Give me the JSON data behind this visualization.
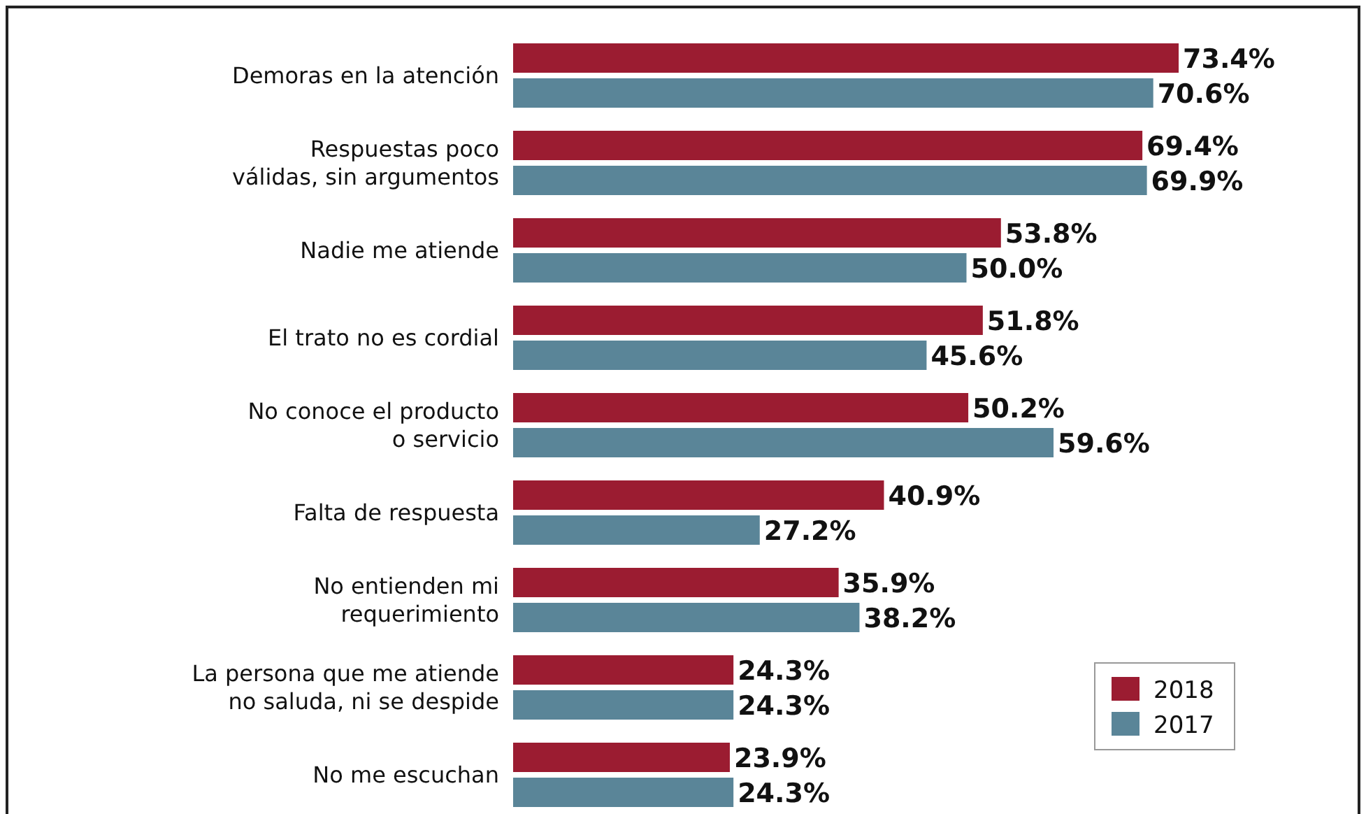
{
  "chart_data": {
    "type": "bar",
    "orientation": "horizontal",
    "legend": "bottom right",
    "categories": [
      "Demoras en la atención",
      "Respuestas poco\nválidas, sin argumentos",
      "Nadie me atiende",
      "El trato no es cordial",
      "No conoce el producto\no servicio",
      "Falta de respuesta",
      "No entienden mi\nrequerimiento",
      "La persona que me atiende\nno saluda, ni se despide",
      "No me escuchan"
    ],
    "series": [
      {
        "name": "2018",
        "color": "#9b1c31",
        "values": [
          73.4,
          69.4,
          53.8,
          51.8,
          50.2,
          40.9,
          35.9,
          24.3,
          23.9
        ],
        "value_labels": [
          "73.4%",
          "69.4%",
          "53.8%",
          "51.8%",
          "50.2%",
          "40.9%",
          "35.9%",
          "24.3%",
          "23.9%"
        ]
      },
      {
        "name": "2017",
        "color": "#5a8598",
        "values": [
          70.6,
          69.9,
          50.0,
          45.6,
          59.6,
          27.2,
          38.2,
          24.3,
          24.3
        ],
        "value_labels": [
          "70.6%",
          "69.9%",
          "50.0%",
          "45.6%",
          "59.6%",
          "27.2%",
          "38.2%",
          "24.3%",
          "24.3%"
        ]
      }
    ]
  }
}
